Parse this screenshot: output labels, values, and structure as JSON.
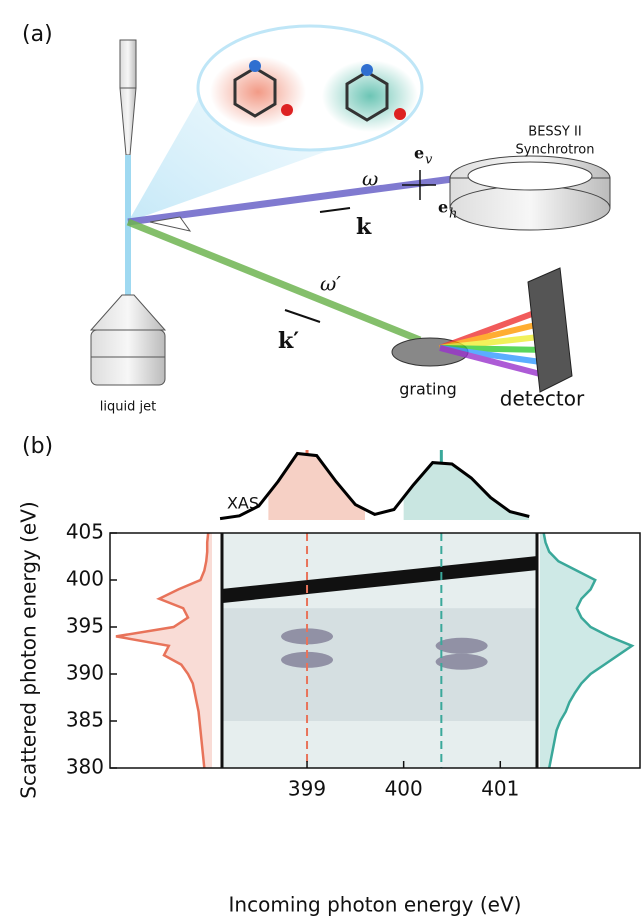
{
  "diagram": {
    "panel_label": "(a)",
    "source": [
      "BESSY II",
      "Synchrotron"
    ],
    "omega": "ω",
    "k": "k",
    "omega_prime": "ω′",
    "k_prime": "k′",
    "e_v": {
      "base": "e",
      "sub": "v"
    },
    "e_h": {
      "base": "e",
      "sub": "h"
    },
    "liquid_jet": "liquid jet",
    "grating": "grating",
    "detector": "detector"
  },
  "chart_data": {
    "type": "rixs_map",
    "panel_label": "(b)",
    "xlabel": "Incoming photon energy (eV)",
    "ylabel": "Scattered photon energy (eV)",
    "xlim": [
      398.12,
      401.38
    ],
    "xticks": [
      399,
      400,
      401
    ],
    "ylim": [
      380,
      405
    ],
    "yticks": [
      380,
      385,
      390,
      395,
      400,
      405
    ],
    "xas": {
      "label": "XAS",
      "color": "#000000",
      "x": [
        398.1,
        398.3,
        398.5,
        398.7,
        398.9,
        399.1,
        399.3,
        399.5,
        399.7,
        399.9,
        400.1,
        400.3,
        400.5,
        400.7,
        400.9,
        401.1,
        401.3
      ],
      "values": [
        0.02,
        0.06,
        0.2,
        0.55,
        0.95,
        0.92,
        0.55,
        0.22,
        0.08,
        0.15,
        0.5,
        0.82,
        0.8,
        0.6,
        0.32,
        0.12,
        0.05
      ]
    },
    "xas_bands": [
      {
        "x0": 398.6,
        "x1": 399.6,
        "color": "#f6d0c5"
      },
      {
        "x0": 400.0,
        "x1": 401.3,
        "color": "#c9e6e1"
      }
    ],
    "cuts": [
      {
        "x": 399.0,
        "color": "#e8735a"
      },
      {
        "x": 400.39,
        "color": "#3aa89a"
      }
    ],
    "energies": [
      380,
      381,
      382,
      383,
      384,
      385,
      386,
      387,
      388,
      389,
      390,
      391,
      392,
      393,
      394,
      395,
      396,
      397,
      398,
      399,
      400,
      401,
      402,
      403,
      404,
      405
    ],
    "series": [
      {
        "color": "#e8735a",
        "side": "left",
        "values": [
          0.08,
          0.09,
          0.1,
          0.11,
          0.12,
          0.13,
          0.14,
          0.16,
          0.18,
          0.2,
          0.25,
          0.32,
          0.5,
          0.45,
          1.0,
          0.4,
          0.25,
          0.3,
          0.55,
          0.35,
          0.12,
          0.08,
          0.06,
          0.05,
          0.05,
          0.04
        ]
      },
      {
        "color": "#3aa89a",
        "side": "right",
        "values": [
          0.1,
          0.12,
          0.14,
          0.16,
          0.18,
          0.22,
          0.28,
          0.32,
          0.38,
          0.45,
          0.55,
          0.7,
          0.85,
          1.0,
          0.75,
          0.55,
          0.45,
          0.4,
          0.45,
          0.55,
          0.6,
          0.4,
          0.2,
          0.1,
          0.06,
          0.04
        ]
      }
    ],
    "elastic": {
      "x": [
        398.12,
        401.38
      ],
      "values": [
        398.3,
        401.8
      ]
    },
    "features": {
      "x": [
        399.0,
        399.0,
        400.6,
        400.6
      ],
      "values": [
        394,
        391.5,
        393,
        391.3
      ]
    }
  }
}
